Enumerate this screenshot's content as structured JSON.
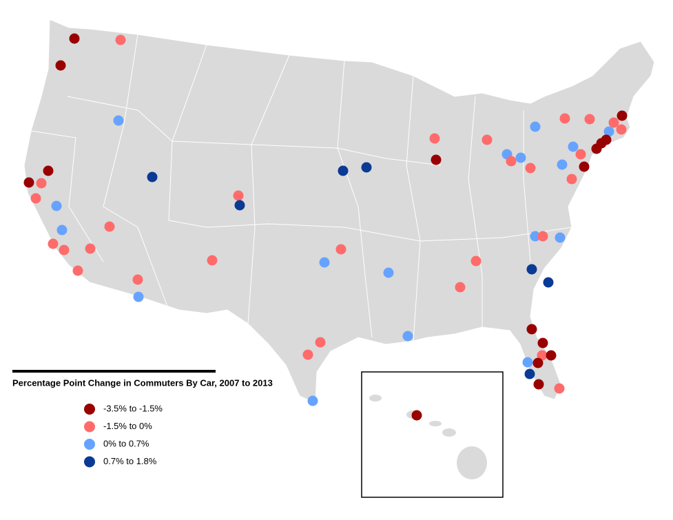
{
  "legend": {
    "title": "Percentage Point Change in Commuters By Car, 2007  to 2013",
    "items": [
      {
        "label": "-3.5% to -1.5%",
        "color": "#990000"
      },
      {
        "label": "-1.5% to 0%",
        "color": "#ff6b6b"
      },
      {
        "label": "0% to 0.7%",
        "color": "#66a3ff"
      },
      {
        "label": "0.7% to 1.8%",
        "color": "#0a3a94"
      }
    ]
  }
}
